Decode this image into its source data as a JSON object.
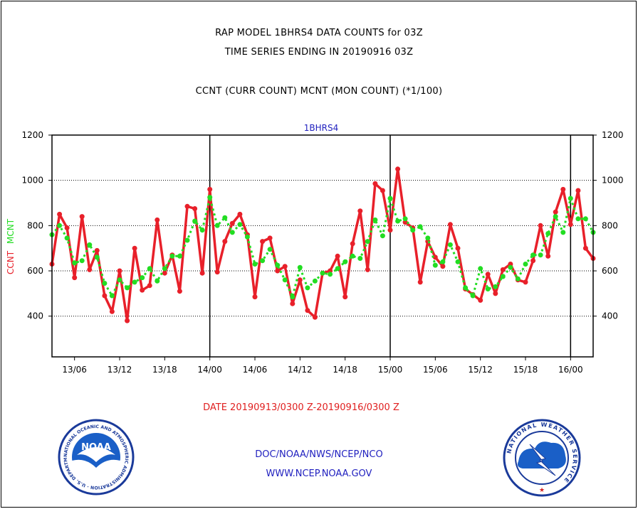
{
  "header": {
    "line1": "RAP MODEL 1BHRS4 DATA COUNTS for 03Z",
    "line2": "TIME SERIES ENDING IN 20190916 03Z",
    "line3": "CCNT (CURR COUNT) MCNT (MON COUNT) (*1/100)"
  },
  "footer": {
    "date_range": "DATE 20190913/0300 Z-20190916/0300 Z",
    "org_path": "DOC/NOAA/NWS/NCEP/NCO",
    "website": "WWW.NCEP.NOAA.GOV"
  },
  "logos": {
    "left_text": "NATIONAL OCEANIC AND ATMOSPHERIC ADMINISTRATION · U.S. DEPARTMENT OF COMMERCE ·",
    "left_center": "NOAA",
    "right_text": "NATIONAL WEATHER SERVICE"
  },
  "colors": {
    "ccnt": "#e8202a",
    "mcnt": "#22dd22",
    "axis": "#000000",
    "chart_title": "#1f1fbf"
  },
  "chart_data": {
    "type": "line",
    "title": "1BHRS4",
    "ylabel_left_1": "CCNT",
    "ylabel_left_2": "MCNT",
    "ylim": [
      220,
      1200
    ],
    "yticks": [
      400,
      600,
      800,
      1000,
      1200
    ],
    "grid": true,
    "x_unit": "hour index from 20190913/0300 Z",
    "xlim": [
      0,
      72
    ],
    "xticks": [
      {
        "x": 3,
        "label": "13/06"
      },
      {
        "x": 9,
        "label": "13/12"
      },
      {
        "x": 15,
        "label": "13/18"
      },
      {
        "x": 21,
        "label": "14/00"
      },
      {
        "x": 27,
        "label": "14/06"
      },
      {
        "x": 33,
        "label": "14/12"
      },
      {
        "x": 39,
        "label": "14/18"
      },
      {
        "x": 45,
        "label": "15/00"
      },
      {
        "x": 51,
        "label": "15/06"
      },
      {
        "x": 57,
        "label": "15/12"
      },
      {
        "x": 63,
        "label": "15/18"
      },
      {
        "x": 69,
        "label": "16/00"
      }
    ],
    "day_lines_x": [
      21,
      45,
      69
    ],
    "series": [
      {
        "name": "CCNT",
        "values": [
          630,
          850,
          790,
          570,
          840,
          605,
          690,
          490,
          420,
          600,
          380,
          700,
          515,
          535,
          825,
          590,
          670,
          510,
          885,
          875,
          590,
          960,
          595,
          730,
          810,
          850,
          760,
          485,
          730,
          745,
          600,
          620,
          455,
          560,
          425,
          395,
          590,
          600,
          665,
          485,
          720,
          865,
          605,
          985,
          955,
          780,
          1050,
          815,
          790,
          550,
          730,
          660,
          620,
          805,
          700,
          520,
          495,
          470,
          585,
          500,
          605,
          630,
          560,
          550,
          645,
          800,
          665,
          860,
          960,
          805,
          955,
          700,
          655
        ]
      },
      {
        "name": "MCNT",
        "values": [
          760,
          800,
          745,
          635,
          645,
          715,
          660,
          545,
          490,
          560,
          525,
          550,
          570,
          610,
          555,
          610,
          665,
          665,
          735,
          820,
          780,
          925,
          800,
          835,
          770,
          805,
          750,
          630,
          645,
          695,
          625,
          560,
          485,
          615,
          525,
          555,
          590,
          585,
          610,
          640,
          665,
          655,
          730,
          825,
          755,
          920,
          820,
          830,
          780,
          795,
          745,
          625,
          640,
          715,
          640,
          525,
          490,
          610,
          520,
          530,
          575,
          615,
          565,
          630,
          670,
          670,
          765,
          840,
          770,
          920,
          830,
          830,
          770
        ]
      }
    ]
  }
}
